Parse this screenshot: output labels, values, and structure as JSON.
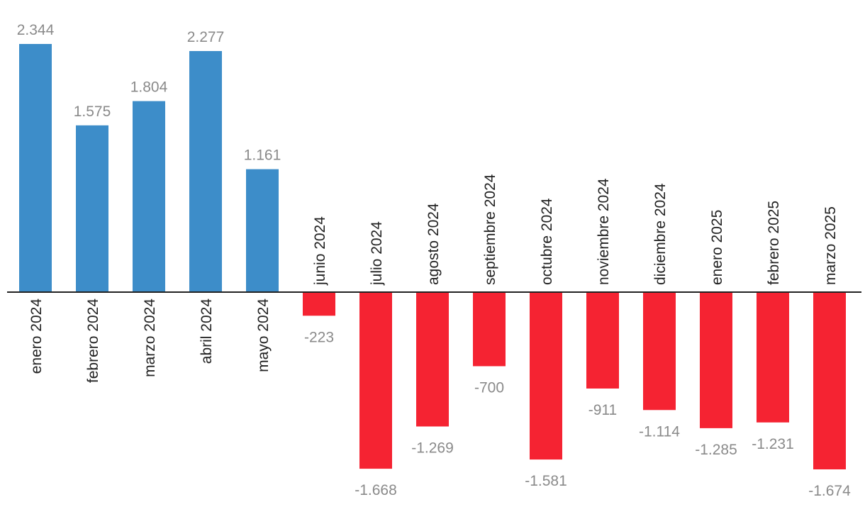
{
  "chart_data": {
    "type": "bar",
    "categories": [
      "enero 2024",
      "febrero 2024",
      "marzo 2024",
      "abril 2024",
      "mayo 2024",
      "junio 2024",
      "julio 2024",
      "agosto 2024",
      "septiembre 2024",
      "octubre 2024",
      "noviembre 2024",
      "diciembre 2024",
      "enero 2025",
      "febrero 2025",
      "marzo 2025"
    ],
    "values": [
      2344,
      1575,
      1804,
      2277,
      1161,
      -223,
      -1668,
      -1269,
      -700,
      -1581,
      -911,
      -1114,
      -1285,
      -1231,
      -1674
    ],
    "value_labels": [
      "2.344",
      "1.575",
      "1.804",
      "2.277",
      "1.161",
      "-223",
      "-1.668",
      "-1.269",
      "-700",
      "-1.581",
      "-911",
      "-1.114",
      "-1.285",
      "-1.231",
      "-1.674"
    ],
    "title": "",
    "xlabel": "",
    "ylabel": "",
    "grid": false,
    "legend": "none",
    "colors": {
      "positive": "#3d8dc9",
      "negative": "#f52332",
      "axis": "#222222",
      "value_text": "#8a8a8a",
      "category_text": "#222222"
    }
  }
}
